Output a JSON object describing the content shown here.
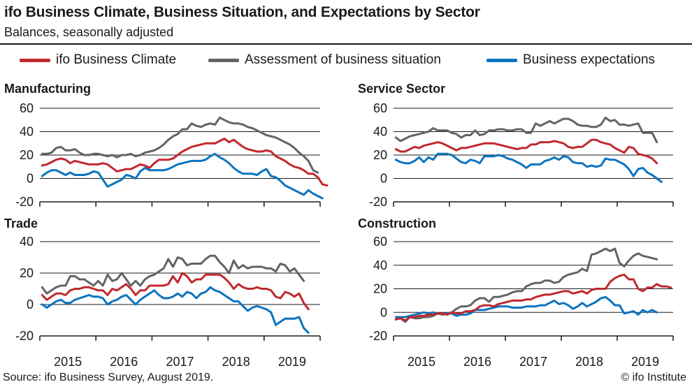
{
  "header": {
    "title": "ifo Business Climate, Business Situation, and Expectations by Sector",
    "subtitle": "Balances, seasonally adjusted"
  },
  "legend": [
    {
      "label": "ifo Business Climate",
      "color": "#c0282d"
    },
    {
      "label": "Assessment of business situation",
      "color": "#636363"
    },
    {
      "label": "Business expectations",
      "color": "#0a74c0"
    }
  ],
  "footer": {
    "source": "Source: ifo Business Survey, August 2019.",
    "copyright": "© ifo Institute"
  },
  "chart_data": [
    {
      "type": "line",
      "title": "Manufacturing",
      "x_start": "2015-01",
      "x_end": "2019-08",
      "xticks": [
        "2015",
        "2016",
        "2017",
        "2018",
        "2019"
      ],
      "yticks": [
        60,
        40,
        20,
        0,
        -20
      ],
      "ylim": [
        -20,
        60
      ],
      "grid": true,
      "series": [
        {
          "name": "ifo Business Climate",
          "color": "#c0282d",
          "values": [
            11,
            12,
            14,
            16,
            17,
            16,
            13,
            15,
            14,
            13,
            12,
            12,
            12,
            13,
            12,
            9,
            6,
            7,
            8,
            8,
            10,
            12,
            11,
            9,
            13,
            16,
            16,
            16,
            17,
            20,
            23,
            25,
            27,
            28,
            29,
            30,
            30,
            30,
            32,
            34,
            31,
            33,
            30,
            27,
            25,
            24,
            23,
            23,
            24,
            23,
            19,
            17,
            15,
            12,
            10,
            9,
            7,
            4,
            4,
            1,
            -5,
            -6
          ]
        },
        {
          "name": "Assessment of business situation",
          "color": "#636363",
          "values": [
            21,
            21,
            22,
            26,
            27,
            24,
            24,
            25,
            22,
            20,
            20,
            21,
            21,
            20,
            19,
            20,
            18,
            20,
            20,
            21,
            19,
            20,
            22,
            23,
            24,
            26,
            29,
            33,
            36,
            38,
            42,
            42,
            47,
            45,
            44,
            46,
            47,
            46,
            52,
            50,
            48,
            47,
            47,
            46,
            44,
            43,
            41,
            39,
            37,
            36,
            35,
            33,
            31,
            29,
            26,
            22,
            19,
            15,
            7,
            5
          ]
        },
        {
          "name": "Business expectations",
          "color": "#0a74c0",
          "values": [
            2,
            5,
            7,
            7,
            5,
            3,
            5,
            3,
            3,
            3,
            4,
            6,
            5,
            -1,
            -7,
            -5,
            -3,
            -1,
            3,
            2,
            0,
            6,
            9,
            7,
            7,
            7,
            7,
            8,
            10,
            12,
            13,
            14,
            15,
            15,
            15,
            16,
            19,
            21,
            18,
            16,
            13,
            9,
            6,
            4,
            4,
            4,
            3,
            6,
            8,
            2,
            1,
            -2,
            -6,
            -8,
            -10,
            -12,
            -14,
            -10,
            -13,
            -15,
            -17
          ]
        }
      ]
    },
    {
      "type": "line",
      "title": "Service Sector",
      "x_start": "2015-01",
      "x_end": "2019-08",
      "xticks": [
        "2015",
        "2016",
        "2017",
        "2018",
        "2019"
      ],
      "yticks": [
        60,
        40,
        20,
        0,
        -20
      ],
      "ylim": [
        -20,
        60
      ],
      "grid": true,
      "series": [
        {
          "name": "ifo Business Climate",
          "color": "#c0282d",
          "values": [
            25,
            23,
            23,
            25,
            27,
            26,
            28,
            29,
            30,
            31,
            30,
            28,
            26,
            24,
            26,
            26,
            27,
            28,
            29,
            30,
            30,
            30,
            29,
            28,
            27,
            26,
            25,
            26,
            26,
            29,
            29,
            31,
            31,
            31,
            32,
            31,
            30,
            27,
            26,
            27,
            27,
            30,
            33,
            33,
            31,
            30,
            29,
            26,
            24,
            22,
            27,
            26,
            21,
            20,
            19,
            17,
            13
          ]
        },
        {
          "name": "Assessment of business situation",
          "color": "#636363",
          "values": [
            35,
            32,
            34,
            36,
            37,
            38,
            39,
            40,
            43,
            41,
            41,
            41,
            39,
            38,
            35,
            37,
            37,
            41,
            37,
            38,
            41,
            41,
            42,
            42,
            41,
            41,
            42,
            42,
            39,
            39,
            47,
            45,
            47,
            49,
            47,
            49,
            51,
            51,
            49,
            46,
            45,
            45,
            44,
            44,
            46,
            52,
            49,
            50,
            46,
            46,
            45,
            46,
            47,
            39,
            39,
            39,
            31
          ]
        },
        {
          "name": "Business expectations",
          "color": "#0a74c0",
          "values": [
            16,
            14,
            13,
            13,
            15,
            18,
            14,
            18,
            16,
            21,
            21,
            21,
            20,
            17,
            14,
            13,
            16,
            15,
            13,
            19,
            19,
            19,
            20,
            19,
            17,
            16,
            14,
            12,
            9,
            12,
            12,
            12,
            15,
            16,
            18,
            16,
            19,
            18,
            14,
            13,
            13,
            10,
            11,
            10,
            11,
            17,
            16,
            16,
            14,
            12,
            8,
            2,
            8,
            9,
            5,
            3,
            0,
            -3
          ]
        }
      ]
    },
    {
      "type": "line",
      "title": "Trade",
      "x_start": "2015-01",
      "x_end": "2019-08",
      "xticks": [
        "2015",
        "2016",
        "2017",
        "2018",
        "2019"
      ],
      "yticks": [
        40,
        20,
        0,
        -20
      ],
      "ylim": [
        -20,
        40
      ],
      "grid": true,
      "series": [
        {
          "name": "ifo Business Climate",
          "color": "#c0282d",
          "values": [
            6,
            3,
            5,
            7,
            7,
            6,
            9,
            10,
            10,
            11,
            11,
            10,
            9,
            9,
            6,
            10,
            9,
            11,
            13,
            10,
            6,
            9,
            9,
            12,
            12,
            12,
            12,
            13,
            18,
            14,
            20,
            18,
            14,
            16,
            16,
            19,
            19,
            19,
            19,
            17,
            14,
            10,
            13,
            11,
            10,
            10,
            11,
            10,
            10,
            9,
            5,
            4,
            8,
            7,
            5,
            7,
            1,
            -3
          ]
        },
        {
          "name": "Assessment of business situation",
          "color": "#636363",
          "values": [
            11,
            7,
            9,
            11,
            12,
            12,
            18,
            18,
            16,
            16,
            14,
            12,
            15,
            12,
            19,
            15,
            16,
            20,
            16,
            12,
            15,
            12,
            16,
            18,
            19,
            21,
            23,
            29,
            24,
            30,
            29,
            25,
            26,
            26,
            26,
            29,
            31,
            31,
            27,
            24,
            20,
            28,
            23,
            25,
            23,
            24,
            24,
            24,
            23,
            23,
            21,
            26,
            25,
            21,
            23,
            19,
            15
          ]
        },
        {
          "name": "Business expectations",
          "color": "#0a74c0",
          "values": [
            0,
            -2,
            0,
            2,
            3,
            1,
            1,
            3,
            4,
            5,
            6,
            5,
            5,
            4,
            0,
            2,
            3,
            5,
            6,
            3,
            0,
            3,
            5,
            7,
            9,
            6,
            4,
            4,
            5,
            7,
            5,
            8,
            7,
            4,
            7,
            8,
            11,
            9,
            8,
            6,
            4,
            2,
            2,
            -1,
            -4,
            -2,
            -1,
            -2,
            -3,
            -5,
            -13,
            -11,
            -9,
            -9,
            -9,
            -8,
            -15,
            -18
          ]
        }
      ]
    },
    {
      "type": "line",
      "title": "Construction",
      "x_start": "2015-01",
      "x_end": "2019-08",
      "xticks": [
        "2015",
        "2016",
        "2017",
        "2018",
        "2019"
      ],
      "yticks": [
        60,
        40,
        20,
        0,
        -20
      ],
      "ylim": [
        -20,
        60
      ],
      "grid": true,
      "series": [
        {
          "name": "ifo Business Climate",
          "color": "#c0282d",
          "values": [
            -6,
            -5,
            -7,
            -4,
            -4,
            -3,
            -3,
            -2,
            -2,
            -1,
            -1,
            -2,
            0,
            -1,
            -1,
            1,
            1,
            2,
            5,
            6,
            6,
            5,
            7,
            8,
            9,
            10,
            10,
            10,
            11,
            11,
            13,
            14,
            15,
            15,
            16,
            17,
            18,
            18,
            16,
            17,
            18,
            16,
            19,
            20,
            20,
            20,
            26,
            29,
            31,
            32,
            28,
            28,
            20,
            18,
            21,
            21,
            24,
            22,
            22,
            21
          ]
        },
        {
          "name": "Assessment of business situation",
          "color": "#636363",
          "values": [
            -6,
            -5,
            -8,
            -4,
            -5,
            -5,
            -4,
            -4,
            -3,
            -1,
            -2,
            -1,
            0,
            3,
            5,
            5,
            6,
            10,
            12,
            12,
            9,
            13,
            13,
            14,
            15,
            17,
            18,
            18,
            22,
            24,
            25,
            25,
            27,
            27,
            25,
            26,
            30,
            32,
            33,
            34,
            37,
            35,
            49,
            50,
            52,
            54,
            52,
            54,
            42,
            39,
            44,
            48,
            50,
            48,
            47,
            46,
            45
          ]
        },
        {
          "name": "Business expectations",
          "color": "#0a74c0",
          "values": [
            -4,
            -4,
            -4,
            -3,
            -2,
            -1,
            0,
            -1,
            0,
            -1,
            -1,
            -1,
            -1,
            -3,
            -2,
            -2,
            -1,
            2,
            2,
            2,
            3,
            4,
            5,
            5,
            5,
            4,
            4,
            4,
            5,
            5,
            5,
            6,
            6,
            8,
            10,
            7,
            8,
            6,
            3,
            5,
            8,
            5,
            7,
            9,
            12,
            13,
            10,
            6,
            6,
            -1,
            0,
            1,
            -2,
            2,
            0,
            2,
            0
          ]
        }
      ]
    }
  ]
}
